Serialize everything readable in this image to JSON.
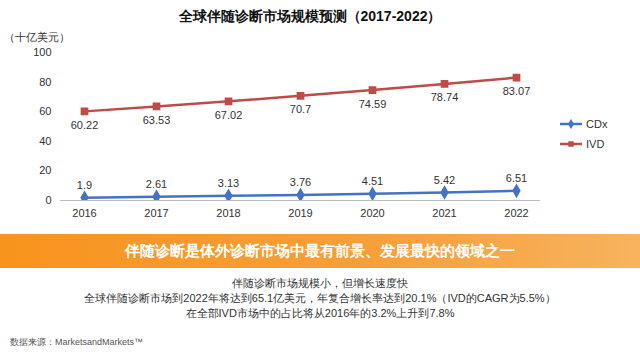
{
  "chart_data": {
    "type": "line",
    "title": "全球伴随诊断市场规模预测（2017-2022）",
    "ylabel": "（十亿美元）",
    "categories": [
      "2016",
      "2017",
      "2018",
      "2019",
      "2020",
      "2021",
      "2022"
    ],
    "series": [
      {
        "name": "CDx",
        "color": "#4472c4",
        "marker": "diamond",
        "values": [
          1.9,
          2.61,
          3.13,
          3.76,
          4.51,
          5.42,
          6.51
        ]
      },
      {
        "name": "IVD",
        "color": "#be4b48",
        "marker": "square",
        "values": [
          60.22,
          63.53,
          67.02,
          70.7,
          74.59,
          78.74,
          83.07
        ]
      }
    ],
    "ylim": [
      0,
      100
    ],
    "yticks": [
      0,
      20,
      40,
      60,
      80,
      100
    ],
    "grid": false,
    "legend": "right",
    "data_labels": true,
    "banner": "伴随诊断是体外诊断市场中最有前景、发展最快的领域之一",
    "notes": [
      "伴随诊断市场规模小，但增长速度快",
      "全球伴随诊断市场到2022年将达到65.1亿美元，年复合增长率达到20.1%（IVD的CAGR为5.5%）",
      "在全部IVD市场中的占比将从2016年的3.2%上升到7.8%"
    ],
    "source": "数据来源：MarketsandMarkets™"
  }
}
